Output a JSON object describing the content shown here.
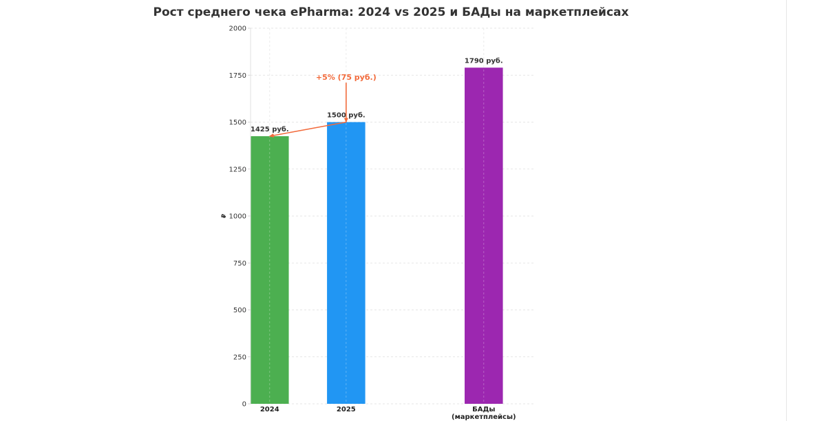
{
  "chart_data": {
    "type": "bar",
    "title": "Рост среднего чека ePharma: 2024 vs 2025 и БАДы на маркетплейсах",
    "xlabel": "",
    "ylabel": "₽",
    "ylim": [
      0,
      2000
    ],
    "yticks": [
      0,
      250,
      500,
      750,
      1000,
      1250,
      1500,
      1750,
      2000
    ],
    "grid": true,
    "legend": "none",
    "categories": [
      "2024",
      "2025",
      "БАДы\n(маркетплейсы)"
    ],
    "category_positions": [
      0,
      1,
      2.8
    ],
    "values": [
      1425,
      1500,
      1790
    ],
    "data_labels": [
      "1425 руб.",
      "1500 руб.",
      "1790 руб."
    ],
    "colors": [
      "#4caf50",
      "#2196f3",
      "#9c27b0"
    ],
    "annotations": [
      {
        "text": "+5% (75 руб.)",
        "color": "#f26a3b",
        "text_x": 1.0,
        "text_y": 1710,
        "arrows": [
          {
            "from": [
              1.0,
              1500
            ],
            "to": [
              0.0,
              1425
            ]
          },
          {
            "from": [
              1.0,
              1710
            ],
            "to": [
              1.0,
              1500
            ]
          }
        ]
      }
    ]
  }
}
